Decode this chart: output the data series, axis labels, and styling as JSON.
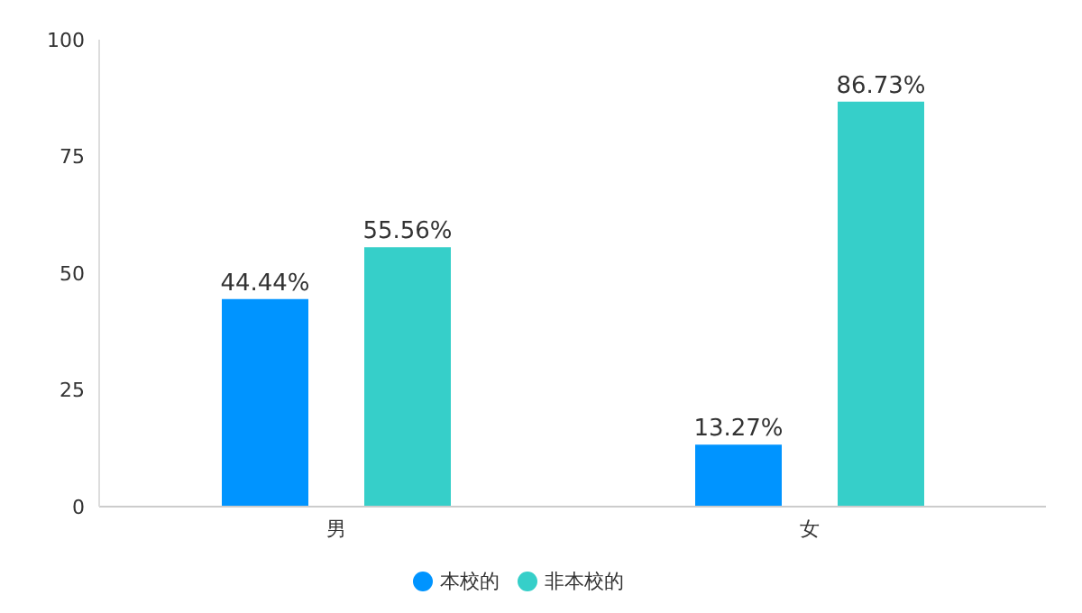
{
  "chart_data": {
    "type": "bar",
    "categories": [
      "男",
      "女"
    ],
    "series": [
      {
        "name": "本校的",
        "color": "#0094ff",
        "values": [
          44.44,
          13.27
        ],
        "value_labels": [
          "44.44%",
          "13.27%"
        ]
      },
      {
        "name": "非本校的",
        "color": "#36cfc9",
        "values": [
          55.56,
          86.73
        ],
        "value_labels": [
          "55.56%",
          "86.73%"
        ]
      }
    ],
    "ylim": [
      0,
      100
    ],
    "yticks": [
      0,
      25,
      50,
      75,
      100
    ],
    "grid": false,
    "legend": "bottom"
  }
}
